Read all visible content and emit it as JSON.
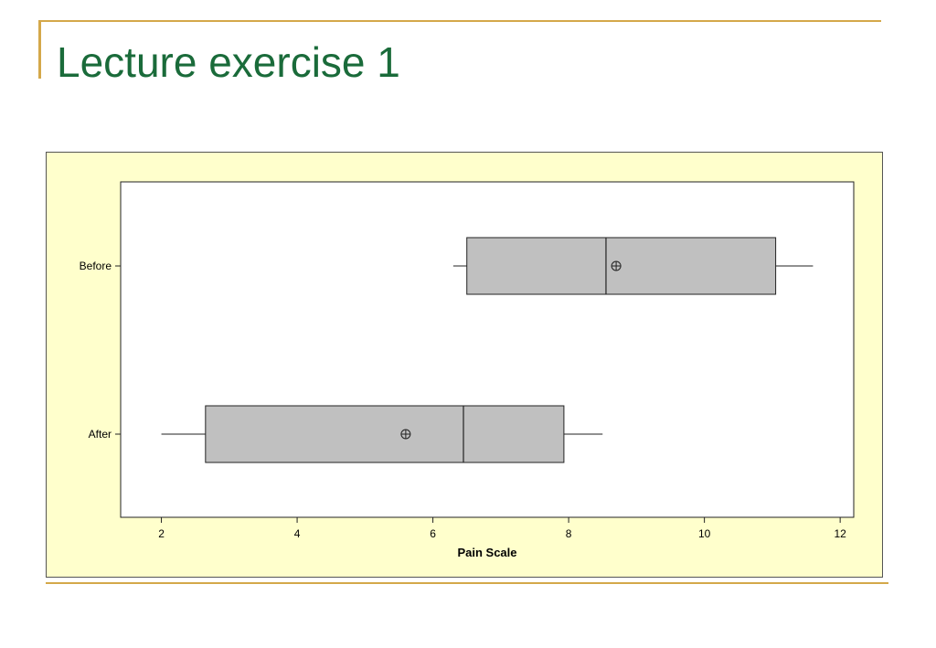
{
  "slide": {
    "title": "Lecture exercise 1"
  },
  "colors": {
    "accent": "#d4a84a",
    "title": "#1a6b3a",
    "chart_background": "#ffffcc",
    "box_fill": "#c0c0c0"
  },
  "chart_data": {
    "type": "boxplot",
    "orientation": "horizontal",
    "xlabel": "Pain Scale",
    "ylabel": "",
    "xlim": [
      1.4,
      12.2
    ],
    "xticks": [
      2,
      4,
      6,
      8,
      10,
      12
    ],
    "categories": [
      "Before",
      "After"
    ],
    "series": [
      {
        "name": "Before",
        "whisker_low": 6.3,
        "q1": 6.5,
        "median": 8.55,
        "q3": 11.05,
        "whisker_high": 11.6,
        "mean": 8.7
      },
      {
        "name": "After",
        "whisker_low": 2.0,
        "q1": 2.65,
        "median": 6.45,
        "q3": 7.93,
        "whisker_high": 8.5,
        "mean": 5.6
      }
    ],
    "grid": false,
    "mean_marker": "circled-plus"
  }
}
